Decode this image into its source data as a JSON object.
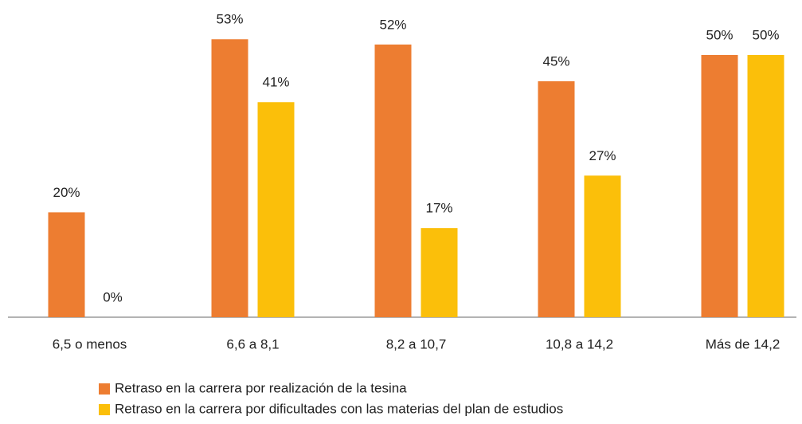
{
  "chart_data": {
    "type": "bar",
    "categories": [
      "6,5 o  menos",
      "6,6 a 8,1",
      "8,2 a 10,7",
      "10,8 a 14,2",
      "Más de  14,2"
    ],
    "series": [
      {
        "name": "Retraso en la carrera por realización de la tesina",
        "color": "#ed7d31",
        "values": [
          20,
          53,
          52,
          45,
          50
        ],
        "value_labels": [
          "20%",
          "53%",
          "52%",
          "45%",
          "50%"
        ]
      },
      {
        "name": "Retraso en la carrera por dificultades con las materias del plan de estudios",
        "color": "#fbbf0a",
        "values": [
          0,
          41,
          17,
          27,
          50
        ],
        "value_labels": [
          "0%",
          "41%",
          "17%",
          "27%",
          "50%"
        ]
      }
    ]
  }
}
